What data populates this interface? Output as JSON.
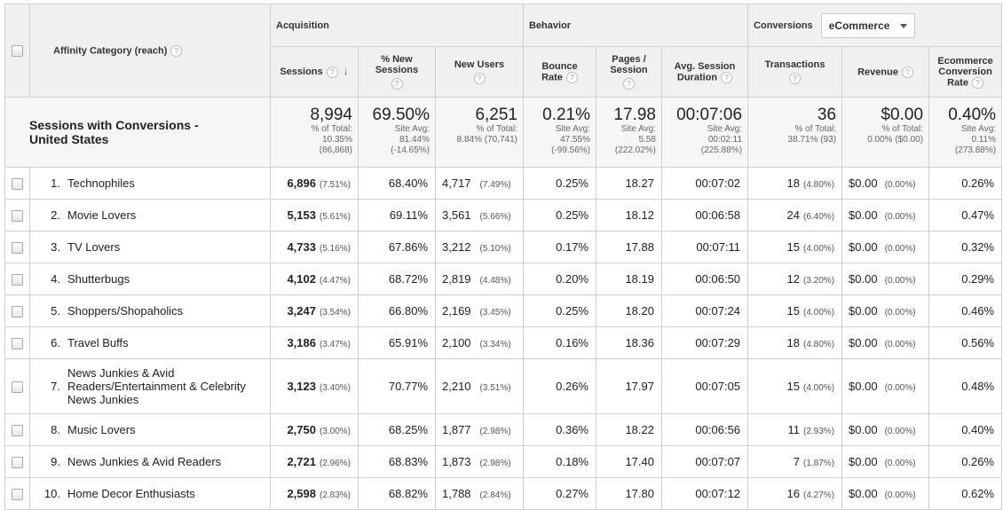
{
  "dimension": {
    "label": "Affinity Category (reach)"
  },
  "groups": {
    "acquisition": "Acquisition",
    "behavior": "Behavior",
    "conversions": "Conversions",
    "conversions_select": "eCommerce"
  },
  "columns": {
    "sessions": "Sessions",
    "new_sessions_1": "% New",
    "new_sessions_2": "Sessions",
    "new_users": "New Users",
    "bounce_1": "Bounce",
    "bounce_2": "Rate",
    "pages_1": "Pages /",
    "pages_2": "Session",
    "avg_1": "Avg. Session",
    "avg_2": "Duration",
    "transactions": "Transactions",
    "revenue": "Revenue",
    "ecr_1": "Ecommerce",
    "ecr_2": "Conversion",
    "ecr_3": "Rate"
  },
  "total": {
    "label_1": "Sessions with Conversions -",
    "label_2": "United States",
    "sessions": {
      "value": "8,994",
      "l1": "% of Total:",
      "l2": "10.35%",
      "l3": "(86,868)"
    },
    "new_sessions": {
      "value": "69.50%",
      "l1": "Site Avg:",
      "l2": "81.44%",
      "l3": "(-14.65%)"
    },
    "new_users": {
      "value": "6,251",
      "l1": "% of Total:",
      "l2": "8.84% (70,741)"
    },
    "bounce": {
      "value": "0.21%",
      "l1": "Site Avg:",
      "l2": "47.55%",
      "l3": "(-99.56%)"
    },
    "pages": {
      "value": "17.98",
      "l1": "Site Avg:",
      "l2": "5.58",
      "l3": "(222.02%)"
    },
    "duration": {
      "value": "00:07:06",
      "l1": "Site Avg:",
      "l2": "00:02:11",
      "l3": "(225.88%)"
    },
    "transactions": {
      "value": "36",
      "l1": "% of Total:",
      "l2": "38.71% (93)"
    },
    "revenue": {
      "value": "$0.00",
      "l1": "% of Total:",
      "l2": "0.00% ($0.00)"
    },
    "ecr": {
      "value": "0.40%",
      "l1": "Site Avg:",
      "l2": "0.11%",
      "l3": "(273.88%)"
    }
  },
  "rows": [
    {
      "idx": "1.",
      "name": "Technophiles",
      "sessions": "6,896",
      "sessions_pct": "(7.51%)",
      "new_sessions": "68.40%",
      "new_users": "4,717",
      "new_users_pct": "(7.49%)",
      "bounce": "0.25%",
      "pages": "18.27",
      "duration": "00:07:02",
      "transactions": "18",
      "transactions_pct": "(4.80%)",
      "revenue": "$0.00",
      "revenue_pct": "(0.00%)",
      "ecr": "0.26%"
    },
    {
      "idx": "2.",
      "name": "Movie Lovers",
      "sessions": "5,153",
      "sessions_pct": "(5.61%)",
      "new_sessions": "69.11%",
      "new_users": "3,561",
      "new_users_pct": "(5.66%)",
      "bounce": "0.25%",
      "pages": "18.12",
      "duration": "00:06:58",
      "transactions": "24",
      "transactions_pct": "(6.40%)",
      "revenue": "$0.00",
      "revenue_pct": "(0.00%)",
      "ecr": "0.47%"
    },
    {
      "idx": "3.",
      "name": "TV Lovers",
      "sessions": "4,733",
      "sessions_pct": "(5.16%)",
      "new_sessions": "67.86%",
      "new_users": "3,212",
      "new_users_pct": "(5.10%)",
      "bounce": "0.17%",
      "pages": "17.88",
      "duration": "00:07:11",
      "transactions": "15",
      "transactions_pct": "(4.00%)",
      "revenue": "$0.00",
      "revenue_pct": "(0.00%)",
      "ecr": "0.32%"
    },
    {
      "idx": "4.",
      "name": "Shutterbugs",
      "sessions": "4,102",
      "sessions_pct": "(4.47%)",
      "new_sessions": "68.72%",
      "new_users": "2,819",
      "new_users_pct": "(4.48%)",
      "bounce": "0.20%",
      "pages": "18.19",
      "duration": "00:06:50",
      "transactions": "12",
      "transactions_pct": "(3.20%)",
      "revenue": "$0.00",
      "revenue_pct": "(0.00%)",
      "ecr": "0.29%"
    },
    {
      "idx": "5.",
      "name": "Shoppers/Shopaholics",
      "sessions": "3,247",
      "sessions_pct": "(3.54%)",
      "new_sessions": "66.80%",
      "new_users": "2,169",
      "new_users_pct": "(3.45%)",
      "bounce": "0.25%",
      "pages": "18.20",
      "duration": "00:07:24",
      "transactions": "15",
      "transactions_pct": "(4.00%)",
      "revenue": "$0.00",
      "revenue_pct": "(0.00%)",
      "ecr": "0.46%"
    },
    {
      "idx": "6.",
      "name": "Travel Buffs",
      "sessions": "3,186",
      "sessions_pct": "(3.47%)",
      "new_sessions": "65.91%",
      "new_users": "2,100",
      "new_users_pct": "(3.34%)",
      "bounce": "0.16%",
      "pages": "18.36",
      "duration": "00:07:29",
      "transactions": "18",
      "transactions_pct": "(4.80%)",
      "revenue": "$0.00",
      "revenue_pct": "(0.00%)",
      "ecr": "0.56%"
    },
    {
      "idx": "7.",
      "name": "News Junkies & Avid Readers/Entertainment & Celebrity News Junkies",
      "sessions": "3,123",
      "sessions_pct": "(3.40%)",
      "new_sessions": "70.77%",
      "new_users": "2,210",
      "new_users_pct": "(3.51%)",
      "bounce": "0.26%",
      "pages": "17.97",
      "duration": "00:07:05",
      "transactions": "15",
      "transactions_pct": "(4.00%)",
      "revenue": "$0.00",
      "revenue_pct": "(0.00%)",
      "ecr": "0.48%",
      "tall": true
    },
    {
      "idx": "8.",
      "name": "Music Lovers",
      "sessions": "2,750",
      "sessions_pct": "(3.00%)",
      "new_sessions": "68.25%",
      "new_users": "1,877",
      "new_users_pct": "(2.98%)",
      "bounce": "0.36%",
      "pages": "18.22",
      "duration": "00:06:56",
      "transactions": "11",
      "transactions_pct": "(2.93%)",
      "revenue": "$0.00",
      "revenue_pct": "(0.00%)",
      "ecr": "0.40%"
    },
    {
      "idx": "9.",
      "name": "News Junkies & Avid Readers",
      "sessions": "2,721",
      "sessions_pct": "(2.96%)",
      "new_sessions": "68.83%",
      "new_users": "1,873",
      "new_users_pct": "(2.98%)",
      "bounce": "0.18%",
      "pages": "17.40",
      "duration": "00:07:07",
      "transactions": "7",
      "transactions_pct": "(1.87%)",
      "revenue": "$0.00",
      "revenue_pct": "(0.00%)",
      "ecr": "0.26%"
    },
    {
      "idx": "10.",
      "name": "Home Decor Enthusiasts",
      "sessions": "2,598",
      "sessions_pct": "(2.83%)",
      "new_sessions": "68.82%",
      "new_users": "1,788",
      "new_users_pct": "(2.84%)",
      "bounce": "0.27%",
      "pages": "17.80",
      "duration": "00:07:12",
      "transactions": "16",
      "transactions_pct": "(4.27%)",
      "revenue": "$0.00",
      "revenue_pct": "(0.00%)",
      "ecr": "0.62%"
    }
  ]
}
